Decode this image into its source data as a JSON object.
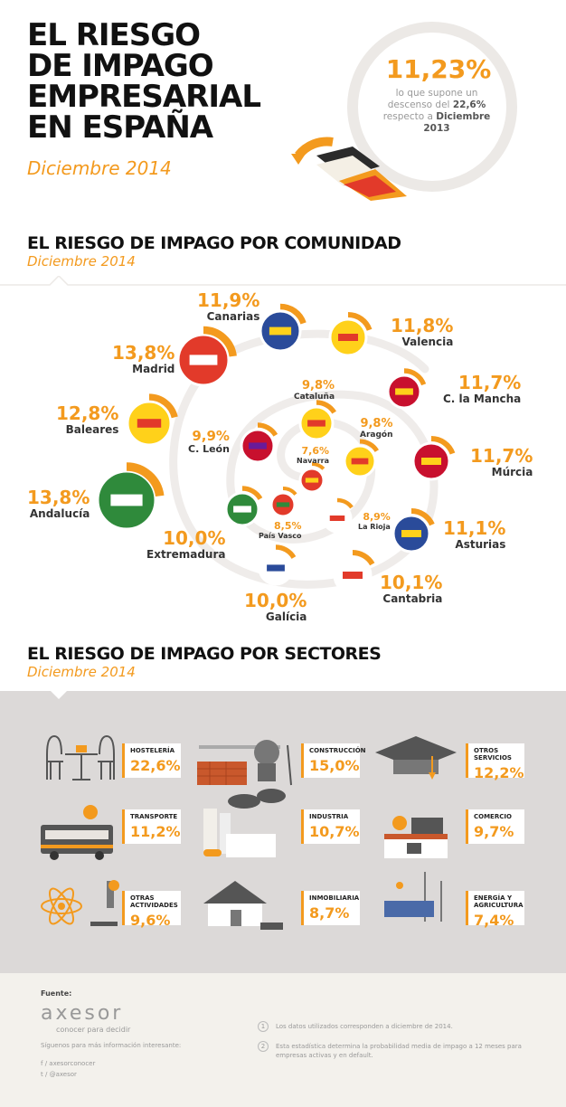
{
  "header": {
    "title_lines": [
      "EL RIESGO",
      "DE IMPAGO",
      "EMPRESARIAL",
      "EN ESPAÑA"
    ],
    "date": "Diciembre 2014",
    "headline_value": "11,23%",
    "headline_text_1": "lo que supone un",
    "headline_text_2": "descenso del",
    "headline_text_2b": "22,6%",
    "headline_text_3": "respecto a",
    "headline_text_3b": "Diciembre",
    "headline_text_4": "2013"
  },
  "section_comunidad": {
    "title": "EL RIESGO DE IMPAGO POR COMUNIDAD",
    "date": "Diciembre 2014"
  },
  "section_sectores": {
    "title": "EL RIESGO DE IMPAGO POR SECTORES",
    "date": "Diciembre 2014"
  },
  "colors": {
    "accent": "#f39a1e",
    "grey_panel": "#dcd9d8",
    "footer_bg": "#f3f1ec",
    "spiral": "#ece9e6"
  },
  "chart_data": [
    {
      "type": "bar",
      "title": "EL RIESGO DE IMPAGO POR COMUNIDAD",
      "categories": [
        "Canarias",
        "Valencia",
        "C. la Mancha",
        "Múrcia",
        "Asturias",
        "Cantabria",
        "Galícia",
        "Extremadura",
        "Andalucía",
        "Baleares",
        "Madrid",
        "Cataluña",
        "Aragón",
        "C. León",
        "Navarra",
        "La Rioja",
        "País Vasco"
      ],
      "values": [
        11.9,
        11.8,
        11.7,
        11.7,
        11.1,
        10.1,
        10.0,
        10.0,
        13.8,
        12.8,
        13.8,
        9.8,
        9.8,
        9.9,
        7.6,
        8.9,
        8.5
      ],
      "labels": [
        "11,9%",
        "11,8%",
        "11,7%",
        "11,7%",
        "11,1%",
        "10,1%",
        "10,0%",
        "10,0%",
        "13,8%",
        "12,8%",
        "13,8%",
        "9,8%",
        "9,8%",
        "9,9%",
        "7,6%",
        "8,9%",
        "8,5%"
      ]
    },
    {
      "type": "bar",
      "title": "EL RIESGO DE IMPAGO POR SECTORES",
      "categories": [
        "HOSTELERÍA",
        "CONSTRUCCIÓN",
        "OTROS SERVICIOS",
        "TRANSPORTE",
        "INDUSTRIA",
        "COMERCIO",
        "OTRAS ACTIVIDADES",
        "INMOBILIARIA",
        "ENERGÍA Y AGRICULTURA"
      ],
      "values": [
        22.6,
        15.0,
        12.2,
        11.2,
        10.7,
        9.7,
        9.6,
        8.7,
        7.4
      ],
      "labels": [
        "22,6%",
        "15,0%",
        "12,2%",
        "11,2%",
        "10,7%",
        "9,7%",
        "9,6%",
        "8,7%",
        "7,4%"
      ]
    }
  ],
  "footer": {
    "fuente": "Fuente:",
    "brand": "axesor",
    "tagline": "conocer para decidir",
    "follow": "Síguenos para más información interesante:",
    "facebook": "/ axesorconocer",
    "twitter": "/ @axesor",
    "note1_num": "1",
    "note1": "Los datos utilizados corresponden a diciembre de 2014.",
    "note2_num": "2",
    "note2": "Esta estadística determina la probabilidad media de impago a 12 meses para empresas activas y en default."
  }
}
